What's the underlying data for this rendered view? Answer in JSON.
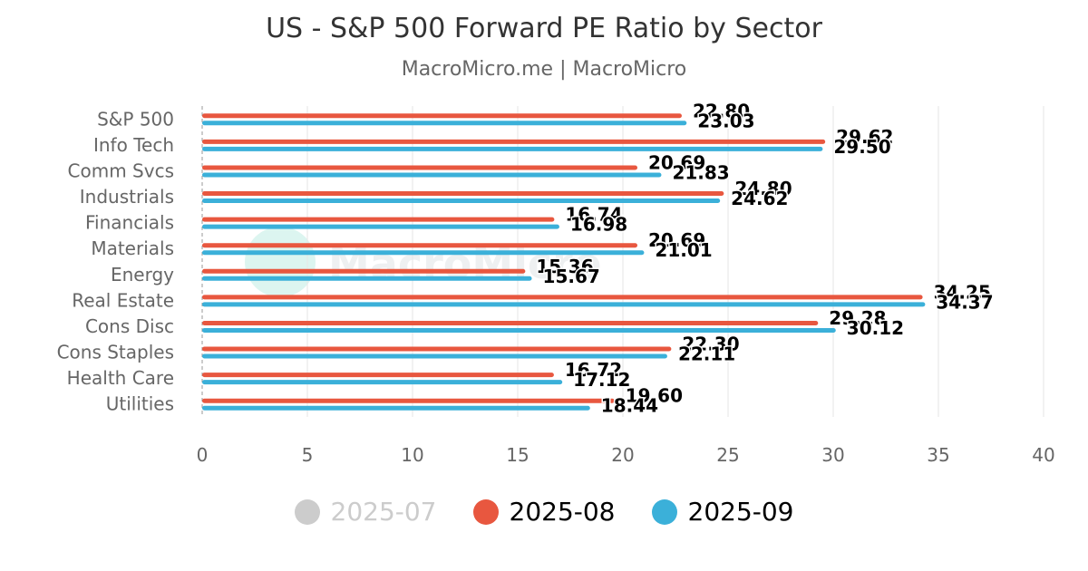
{
  "header": {
    "title": "US - S&P 500 Forward PE Ratio by Sector",
    "subtitle": "MacroMicro.me | MacroMicro"
  },
  "watermark": {
    "text": "MacroMicro"
  },
  "legend": [
    {
      "label": "2025-07",
      "color": "#cccccc",
      "text_color": "#cccccc",
      "active": false
    },
    {
      "label": "2025-08",
      "color": "#e8573f",
      "text_color": "#000000",
      "active": true
    },
    {
      "label": "2025-09",
      "color": "#3bb0d9",
      "text_color": "#000000",
      "active": true
    }
  ],
  "chart_data": {
    "type": "bar",
    "orientation": "horizontal",
    "title": "US - S&P 500 Forward PE Ratio by Sector",
    "categories": [
      "S&P 500",
      "Info Tech",
      "Comm Svcs",
      "Industrials",
      "Financials",
      "Materials",
      "Energy",
      "Real Estate",
      "Cons Disc",
      "Cons Staples",
      "Health Care",
      "Utilities"
    ],
    "series": [
      {
        "name": "2025-08",
        "color": "#e8573f",
        "values": [
          22.8,
          29.62,
          20.69,
          24.8,
          16.74,
          20.69,
          15.36,
          34.25,
          29.28,
          22.3,
          16.72,
          19.6
        ]
      },
      {
        "name": "2025-09",
        "color": "#3bb0d9",
        "values": [
          23.03,
          29.5,
          21.83,
          24.62,
          16.98,
          21.01,
          15.67,
          34.37,
          30.12,
          22.11,
          17.12,
          18.44
        ]
      }
    ],
    "xlim": [
      0,
      40
    ],
    "xticks": [
      0,
      5,
      10,
      15,
      20,
      25,
      30,
      35,
      40
    ],
    "grid": true,
    "legend_position": "bottom"
  }
}
